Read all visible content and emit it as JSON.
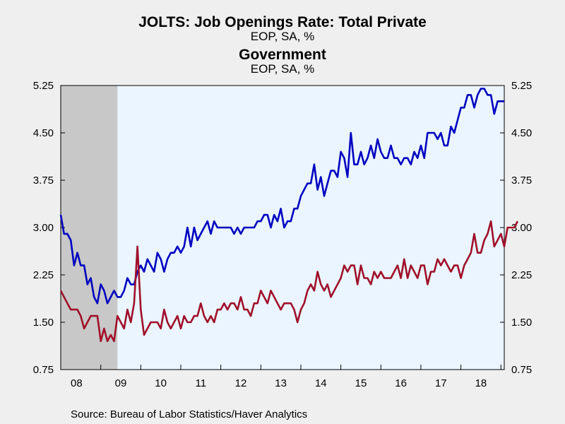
{
  "header": {
    "title1": "JOLTS: Job Openings Rate: Total Private",
    "sub1": "EOP, SA, %",
    "title2": "Government",
    "sub2": "EOP, SA, %"
  },
  "footer": {
    "source": "Source:  Bureau of Labor Statistics/Haver Analytics"
  },
  "colors": {
    "private": "#0000c0",
    "government": "#a0102a",
    "plot_bg": "#eaf5ff",
    "recession": "#c8c8c8",
    "page_bg": "#efefef"
  },
  "chart_data": {
    "type": "line",
    "title": "JOLTS: Job Openings Rate: Total Private",
    "ylim": [
      0.75,
      5.25
    ],
    "y_ticks": [
      "0.75",
      "1.50",
      "2.25",
      "3.00",
      "3.75",
      "4.50",
      "5.25"
    ],
    "x_ticks": [
      "08",
      "09",
      "10",
      "11",
      "12",
      "13",
      "14",
      "15",
      "16",
      "17",
      "18"
    ],
    "x_range": [
      "2008-01",
      "2019-02"
    ],
    "recession_shading": {
      "start": "2008-01",
      "end": "2009-06"
    },
    "series": [
      {
        "name": "JOLTS: Job Openings Rate: Total Private",
        "start": "2008-01",
        "values": [
          3.2,
          2.9,
          2.9,
          2.8,
          2.4,
          2.6,
          2.4,
          2.4,
          2.1,
          2.2,
          1.9,
          1.8,
          2.1,
          2.0,
          1.8,
          1.9,
          2.0,
          1.9,
          1.9,
          2.0,
          2.2,
          2.1,
          2.1,
          2.3,
          2.4,
          2.3,
          2.5,
          2.4,
          2.3,
          2.6,
          2.5,
          2.3,
          2.5,
          2.6,
          2.6,
          2.7,
          2.6,
          2.7,
          3.0,
          2.7,
          3.0,
          2.8,
          2.9,
          3.0,
          3.1,
          2.9,
          3.1,
          3.0,
          3.0,
          3.0,
          3.0,
          3.0,
          2.9,
          3.0,
          2.9,
          3.0,
          3.0,
          3.0,
          3.0,
          3.1,
          3.1,
          3.2,
          3.2,
          3.0,
          3.2,
          3.1,
          3.3,
          3.0,
          3.1,
          3.1,
          3.3,
          3.3,
          3.5,
          3.6,
          3.7,
          3.7,
          4.0,
          3.6,
          3.8,
          3.5,
          3.7,
          3.9,
          3.9,
          3.8,
          4.2,
          4.1,
          3.8,
          4.5,
          4.0,
          4.0,
          4.2,
          4.0,
          4.1,
          4.3,
          4.1,
          4.4,
          4.2,
          4.1,
          4.1,
          4.3,
          4.1,
          4.1,
          4.0,
          4.1,
          4.1,
          4.0,
          4.2,
          4.1,
          4.3,
          4.1,
          4.5,
          4.5,
          4.5,
          4.4,
          4.5,
          4.3,
          4.3,
          4.6,
          4.5,
          4.7,
          4.9,
          4.9,
          5.1,
          5.1,
          4.9,
          5.1,
          5.2,
          5.2,
          5.1,
          5.1,
          4.8,
          5.0,
          5.0,
          5.0
        ]
      },
      {
        "name": "Government",
        "start": "2008-01",
        "values": [
          2.0,
          1.9,
          1.8,
          1.7,
          1.7,
          1.7,
          1.6,
          1.4,
          1.5,
          1.6,
          1.6,
          1.6,
          1.2,
          1.4,
          1.2,
          1.3,
          1.2,
          1.6,
          1.5,
          1.4,
          1.7,
          1.5,
          1.8,
          2.7,
          1.7,
          1.3,
          1.4,
          1.5,
          1.5,
          1.5,
          1.4,
          1.7,
          1.5,
          1.4,
          1.5,
          1.6,
          1.4,
          1.6,
          1.5,
          1.5,
          1.6,
          1.6,
          1.8,
          1.6,
          1.5,
          1.6,
          1.5,
          1.7,
          1.7,
          1.8,
          1.7,
          1.8,
          1.8,
          1.7,
          1.9,
          1.7,
          1.7,
          1.6,
          1.8,
          1.8,
          2.0,
          1.9,
          1.8,
          2.0,
          1.9,
          1.8,
          1.7,
          1.8,
          1.8,
          1.8,
          1.7,
          1.5,
          1.7,
          1.8,
          2.0,
          2.1,
          2.0,
          2.3,
          2.1,
          2.0,
          2.1,
          1.9,
          2.0,
          2.1,
          2.2,
          2.4,
          2.3,
          2.4,
          2.4,
          2.1,
          2.4,
          2.2,
          2.2,
          2.1,
          2.3,
          2.2,
          2.3,
          2.2,
          2.2,
          2.2,
          2.3,
          2.4,
          2.2,
          2.5,
          2.2,
          2.4,
          2.3,
          2.2,
          2.4,
          2.4,
          2.1,
          2.3,
          2.3,
          2.5,
          2.4,
          2.5,
          2.4,
          2.3,
          2.4,
          2.4,
          2.2,
          2.4,
          2.5,
          2.6,
          2.9,
          2.6,
          2.6,
          2.8,
          2.9,
          3.1,
          2.7,
          2.8,
          2.9,
          2.7,
          3.0,
          3.0,
          3.0,
          3.1
        ]
      }
    ]
  }
}
